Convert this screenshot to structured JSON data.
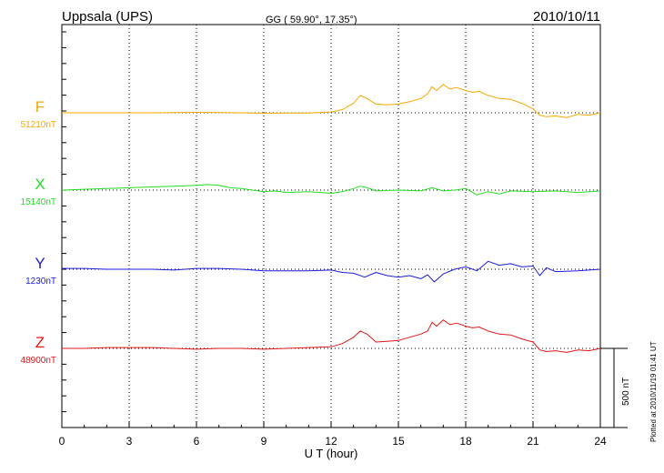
{
  "header": {
    "station": "Uppsala (UPS)",
    "coords": "GG ( 59.90°,  17.35°)",
    "date": "2010/10/11"
  },
  "plotted_note": "Plotted at 2010/11/19 01:41  UT",
  "scale_label": "500 nT",
  "chart_data": {
    "type": "line",
    "xlabel": "U T (hour)",
    "xlim": [
      0,
      24
    ],
    "xticks": [
      "0",
      "3",
      "6",
      "9",
      "12",
      "15",
      "18",
      "21",
      "24"
    ],
    "units_per_label": "nT",
    "scale_bar_nT": 500,
    "series": [
      {
        "name": "F",
        "baseline_label": "51210nT",
        "color": "#f5a800",
        "x": [
          0,
          1,
          2,
          3,
          4,
          5,
          6,
          7,
          8,
          9,
          10,
          11,
          12,
          12.5,
          13,
          13.3,
          13.6,
          14,
          14.5,
          15,
          15.5,
          16,
          16.3,
          16.5,
          16.7,
          17,
          17.3,
          17.6,
          18,
          18.3,
          18.6,
          19,
          19.5,
          20,
          20.5,
          21,
          21.3,
          21.6,
          22,
          22.5,
          23,
          23.5,
          24
        ],
        "values": [
          0,
          0,
          0,
          0,
          0,
          2,
          3,
          2,
          0,
          -3,
          -2,
          -1,
          5,
          20,
          60,
          110,
          90,
          55,
          50,
          55,
          70,
          90,
          120,
          165,
          140,
          180,
          150,
          160,
          140,
          130,
          135,
          110,
          90,
          85,
          60,
          25,
          -15,
          -25,
          -20,
          -30,
          -10,
          -15,
          0
        ]
      },
      {
        "name": "X",
        "baseline_label": "15140nT",
        "color": "#22dd22",
        "x": [
          0,
          1,
          2,
          3,
          4,
          5,
          6,
          6.5,
          7,
          7.5,
          8,
          8.5,
          9,
          9.5,
          10,
          11,
          12,
          12.5,
          13,
          13.3,
          13.6,
          14,
          15,
          16,
          16.5,
          17,
          17.5,
          18,
          18.5,
          19,
          19.5,
          20,
          21,
          22,
          23,
          24
        ],
        "values": [
          0,
          5,
          10,
          15,
          20,
          25,
          30,
          35,
          30,
          15,
          10,
          0,
          -10,
          -5,
          -15,
          -10,
          -20,
          -10,
          10,
          25,
          15,
          -5,
          0,
          -5,
          15,
          -5,
          0,
          10,
          -30,
          -10,
          -25,
          -5,
          -10,
          -5,
          -15,
          -5
        ]
      },
      {
        "name": "Y",
        "baseline_label": "1230nT",
        "color": "#1c1cdc",
        "x": [
          0,
          1,
          2,
          3,
          4,
          5,
          6,
          7,
          8,
          9,
          10,
          11,
          12,
          12.5,
          13,
          13.5,
          14,
          14.5,
          15,
          15.5,
          16,
          16.3,
          16.6,
          17,
          17.5,
          18,
          18.5,
          19,
          19.5,
          20,
          20.5,
          21,
          21.3,
          21.6,
          22,
          23,
          24
        ],
        "values": [
          5,
          5,
          0,
          0,
          0,
          -5,
          5,
          5,
          0,
          -10,
          -10,
          -10,
          -5,
          -20,
          -25,
          -50,
          -20,
          -40,
          -50,
          -40,
          -60,
          -35,
          -80,
          -30,
          0,
          15,
          -10,
          50,
          25,
          35,
          15,
          20,
          -40,
          10,
          -15,
          -10,
          0
        ]
      },
      {
        "name": "Z",
        "baseline_label": "48900nT",
        "color": "#e01818",
        "x": [
          0,
          1,
          2,
          3,
          4,
          5,
          6,
          7,
          8,
          9,
          10,
          11,
          12,
          12.5,
          13,
          13.3,
          13.6,
          14,
          14.5,
          15,
          15.5,
          16,
          16.3,
          16.5,
          16.7,
          17,
          17.3,
          17.6,
          18,
          18.3,
          18.6,
          19,
          19.5,
          20,
          20.5,
          21,
          21.3,
          21.6,
          22,
          22.5,
          23,
          23.5,
          24
        ],
        "values": [
          0,
          0,
          5,
          5,
          5,
          0,
          -5,
          0,
          0,
          -5,
          0,
          5,
          10,
          30,
          70,
          110,
          90,
          40,
          45,
          50,
          70,
          90,
          110,
          165,
          140,
          180,
          150,
          160,
          140,
          130,
          135,
          110,
          90,
          85,
          60,
          40,
          -10,
          -20,
          -15,
          -25,
          -10,
          -15,
          0
        ]
      }
    ]
  }
}
